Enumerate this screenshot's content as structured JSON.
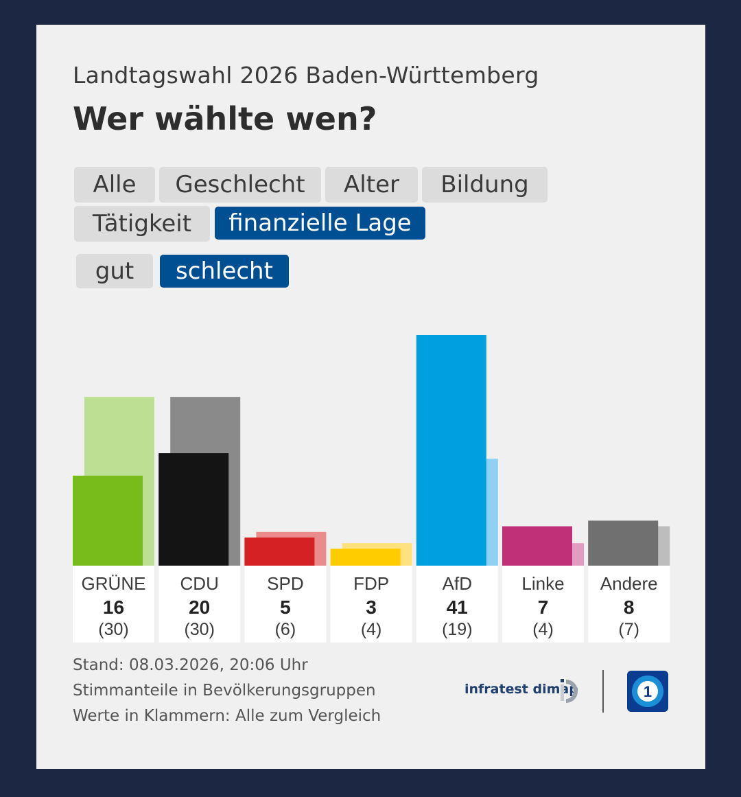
{
  "header": {
    "subtitle": "Landtagswahl 2026 Baden-Württemberg",
    "title": "Wer wählte wen?"
  },
  "filters": {
    "tabs": [
      {
        "label": "Alle",
        "active": false
      },
      {
        "label": "Geschlecht",
        "active": false
      },
      {
        "label": "Alter",
        "active": false
      },
      {
        "label": "Bildung",
        "active": false
      },
      {
        "label": "Tätigkeit",
        "active": false
      },
      {
        "label": "finanzielle Lage",
        "active": true
      }
    ],
    "subtabs": [
      {
        "label": "gut",
        "active": false
      },
      {
        "label": "schlecht",
        "active": true
      }
    ]
  },
  "chart_data": {
    "type": "bar",
    "title": "Wer wählte wen?",
    "categories": [
      "GRÜNE",
      "CDU",
      "SPD",
      "FDP",
      "AfD",
      "Linke",
      "Andere"
    ],
    "series": [
      {
        "name": "finanzielle Lage: schlecht",
        "values": [
          16,
          20,
          5,
          3,
          41,
          7,
          8
        ],
        "colors": [
          "#78bc1c",
          "#141414",
          "#d62124",
          "#ffcc00",
          "#009fe0",
          "#bf3078",
          "#707070"
        ]
      },
      {
        "name": "Alle (Vergleich)",
        "values": [
          30,
          30,
          6,
          4,
          19,
          4,
          7
        ],
        "colors": [
          "#bcdf94",
          "#8a8a8a",
          "#ea8c8c",
          "#ffe27d",
          "#8fd0f3",
          "#e29bc1",
          "#bdbdbd"
        ]
      }
    ],
    "value_labels": [
      "16",
      "20",
      "5",
      "3",
      "41",
      "7",
      "8"
    ],
    "compare_labels": [
      "(30)",
      "(30)",
      "(6)",
      "(4)",
      "(19)",
      "(4)",
      "(7)"
    ],
    "ylim": [
      0,
      41
    ],
    "xlabel": "",
    "ylabel": ""
  },
  "footer": {
    "lines": [
      "Stand: 08.03.2026, 20:06 Uhr",
      "Stimmanteile in Bevölkerungsgruppen",
      "Werte in Klammern: Alle zum Vergleich"
    ],
    "logo_text": "infratest dimap",
    "brand_logo": "ARD Das Erste logo",
    "logo_icon": "infratest-dimap-icon"
  }
}
